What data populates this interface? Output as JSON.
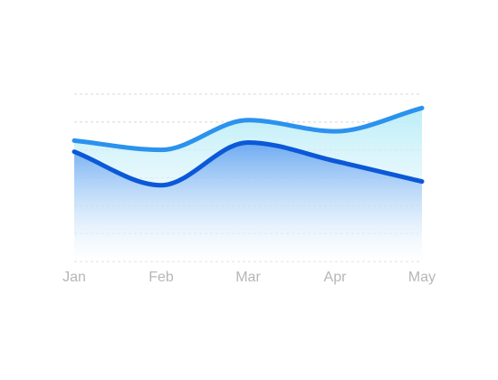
{
  "chart_data": {
    "type": "area",
    "categories": [
      "Jan",
      "Feb",
      "Mar",
      "Apr",
      "May"
    ],
    "series": [
      {
        "values": [
          100,
          90,
          122,
          110,
          135
        ],
        "color": "#2b92ee"
      },
      {
        "values": [
          88,
          52,
          98,
          78,
          56
        ],
        "color": "#0b58d8"
      }
    ],
    "ylim": [
      -30,
      150
    ],
    "grid": true,
    "legend": "none",
    "colors": {
      "area_top": "#a8e6f5",
      "area_bottom": "#5a9cf0",
      "grid": "#d8d8d8",
      "axis_label": "#b6b6b6"
    }
  }
}
